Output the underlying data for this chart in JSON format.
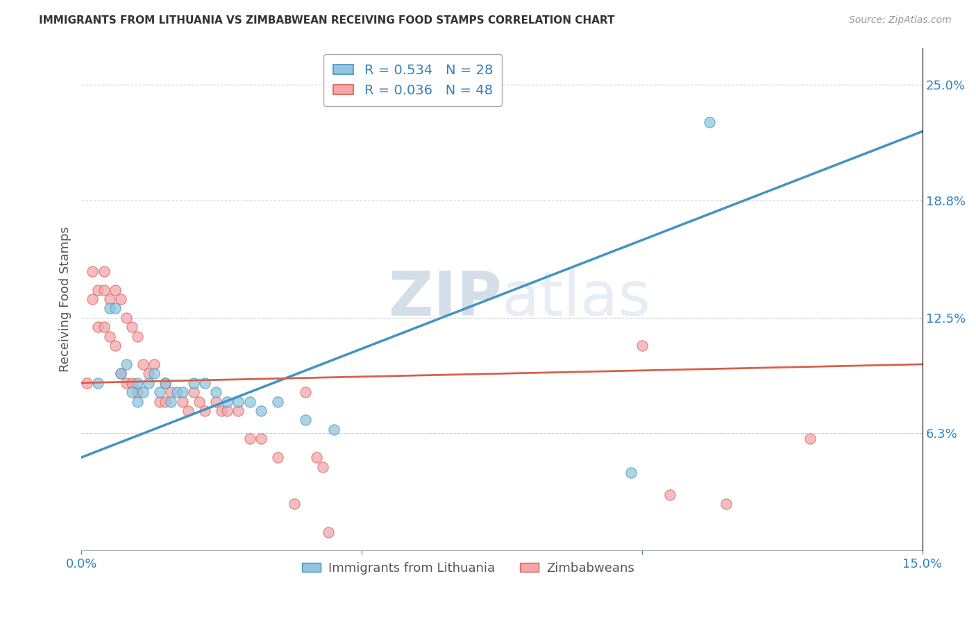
{
  "title": "IMMIGRANTS FROM LITHUANIA VS ZIMBABWEAN RECEIVING FOOD STAMPS CORRELATION CHART",
  "source": "Source: ZipAtlas.com",
  "xlabel_blue": "Immigrants from Lithuania",
  "xlabel_pink": "Zimbabweans",
  "ylabel": "Receiving Food Stamps",
  "xlim": [
    0.0,
    0.15
  ],
  "ylim": [
    0.0,
    0.27
  ],
  "ytick_labels_right": [
    "6.3%",
    "12.5%",
    "18.8%",
    "25.0%"
  ],
  "ytick_values_right": [
    0.063,
    0.125,
    0.188,
    0.25
  ],
  "legend_blue_r": "R = 0.534",
  "legend_blue_n": "N = 28",
  "legend_pink_r": "R = 0.036",
  "legend_pink_n": "N = 48",
  "blue_color": "#92c5de",
  "blue_edge_color": "#4393c3",
  "pink_color": "#f4a6ad",
  "pink_edge_color": "#d6604d",
  "pink_line_color": "#d6604d",
  "blue_line_color": "#4393c3",
  "watermark_zip": "ZIP",
  "watermark_atlas": "atlas",
  "blue_scatter_x": [
    0.003,
    0.005,
    0.006,
    0.007,
    0.008,
    0.009,
    0.01,
    0.01,
    0.011,
    0.012,
    0.013,
    0.014,
    0.015,
    0.016,
    0.017,
    0.018,
    0.02,
    0.022,
    0.024,
    0.026,
    0.028,
    0.03,
    0.032,
    0.035,
    0.04,
    0.045,
    0.098,
    0.112
  ],
  "blue_scatter_y": [
    0.09,
    0.13,
    0.13,
    0.095,
    0.1,
    0.085,
    0.09,
    0.08,
    0.085,
    0.09,
    0.095,
    0.085,
    0.09,
    0.08,
    0.085,
    0.085,
    0.09,
    0.09,
    0.085,
    0.08,
    0.08,
    0.08,
    0.075,
    0.08,
    0.07,
    0.065,
    0.042,
    0.23
  ],
  "pink_scatter_x": [
    0.001,
    0.002,
    0.002,
    0.003,
    0.003,
    0.004,
    0.004,
    0.004,
    0.005,
    0.005,
    0.006,
    0.006,
    0.007,
    0.007,
    0.008,
    0.008,
    0.009,
    0.009,
    0.01,
    0.01,
    0.011,
    0.012,
    0.013,
    0.014,
    0.015,
    0.015,
    0.016,
    0.018,
    0.019,
    0.02,
    0.021,
    0.022,
    0.024,
    0.025,
    0.026,
    0.028,
    0.03,
    0.032,
    0.035,
    0.038,
    0.04,
    0.042,
    0.043,
    0.044,
    0.1,
    0.105,
    0.115,
    0.13
  ],
  "pink_scatter_y": [
    0.09,
    0.15,
    0.135,
    0.14,
    0.12,
    0.15,
    0.14,
    0.12,
    0.135,
    0.115,
    0.14,
    0.11,
    0.135,
    0.095,
    0.125,
    0.09,
    0.12,
    0.09,
    0.115,
    0.085,
    0.1,
    0.095,
    0.1,
    0.08,
    0.09,
    0.08,
    0.085,
    0.08,
    0.075,
    0.085,
    0.08,
    0.075,
    0.08,
    0.075,
    0.075,
    0.075,
    0.06,
    0.06,
    0.05,
    0.025,
    0.085,
    0.05,
    0.045,
    0.01,
    0.11,
    0.03,
    0.025,
    0.06
  ],
  "blue_line_x": [
    0.0,
    0.15
  ],
  "blue_line_y": [
    0.05,
    0.225
  ],
  "pink_line_x": [
    0.0,
    0.15
  ],
  "pink_line_y": [
    0.09,
    0.1
  ],
  "bg_color": "#ffffff",
  "grid_color": "#cccccc"
}
